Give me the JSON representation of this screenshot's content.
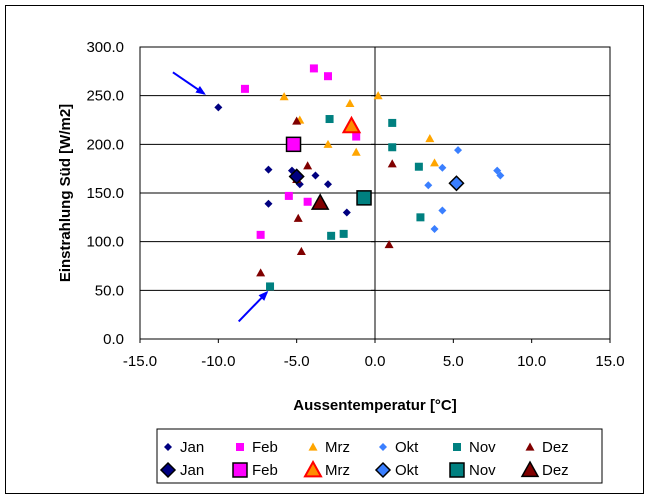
{
  "chart_data": {
    "type": "scatter",
    "title": "",
    "xlabel": "Aussentemperatur [°C]",
    "ylabel": "Einstrahlung Süd [W/m2]",
    "xlim": [
      -15,
      15
    ],
    "ylim": [
      0,
      300
    ],
    "xticks": [
      -15,
      -10,
      -5,
      0,
      5,
      10,
      15
    ],
    "yticks": [
      0,
      50,
      100,
      150,
      200,
      250,
      300
    ],
    "xtick_labels": [
      "-15.0",
      "-10.0",
      "-5.0",
      "0.0",
      "5.0",
      "10.0",
      "15.0"
    ],
    "ytick_labels": [
      "0.0",
      "50.0",
      "100.0",
      "150.0",
      "200.0",
      "250.0",
      "300.0"
    ],
    "grid": "horizontal",
    "legend_position": "bottom",
    "series": [
      {
        "name": "Jan",
        "marker": "diamond",
        "size": "small",
        "color": "#000080",
        "points": [
          [
            -10.0,
            238
          ],
          [
            -6.8,
            174
          ],
          [
            -6.8,
            139
          ],
          [
            -5.3,
            173
          ],
          [
            -5.0,
            164
          ],
          [
            -4.8,
            159
          ],
          [
            -3.8,
            168
          ],
          [
            -3.0,
            159
          ],
          [
            -1.8,
            130
          ]
        ]
      },
      {
        "name": "Feb",
        "marker": "square",
        "size": "small",
        "color": "#ff00ff",
        "points": [
          [
            -8.3,
            257
          ],
          [
            -3.9,
            278
          ],
          [
            -3.0,
            270
          ],
          [
            -1.2,
            208
          ],
          [
            -5.5,
            147
          ],
          [
            -4.3,
            141
          ],
          [
            -7.3,
            107
          ]
        ]
      },
      {
        "name": "Mrz",
        "marker": "triangle",
        "size": "small",
        "color": "#ffa500",
        "points": [
          [
            -5.8,
            249
          ],
          [
            0.2,
            250
          ],
          [
            -1.6,
            242
          ],
          [
            -4.8,
            225
          ],
          [
            -3.0,
            200
          ],
          [
            -1.2,
            192
          ],
          [
            3.5,
            206
          ],
          [
            3.8,
            181
          ]
        ]
      },
      {
        "name": "Okt",
        "marker": "diamond",
        "size": "small",
        "color": "#3a7fff",
        "points": [
          [
            5.3,
            194
          ],
          [
            4.3,
            176
          ],
          [
            3.4,
            158
          ],
          [
            4.3,
            132
          ],
          [
            3.8,
            113
          ],
          [
            7.8,
            173
          ],
          [
            8.0,
            168
          ]
        ]
      },
      {
        "name": "Nov",
        "marker": "square",
        "size": "small",
        "color": "#008080",
        "points": [
          [
            -2.9,
            226
          ],
          [
            1.1,
            222
          ],
          [
            1.1,
            197
          ],
          [
            2.8,
            177
          ],
          [
            2.9,
            125
          ],
          [
            -2.0,
            108
          ],
          [
            -2.8,
            106
          ],
          [
            -6.7,
            54
          ]
        ]
      },
      {
        "name": "Dez",
        "marker": "triangle",
        "size": "small",
        "color": "#800000",
        "points": [
          [
            -5.0,
            224
          ],
          [
            1.1,
            180
          ],
          [
            -4.3,
            178
          ],
          [
            -5.0,
            164
          ],
          [
            -4.9,
            124
          ],
          [
            -4.7,
            90
          ],
          [
            0.9,
            97
          ],
          [
            -7.3,
            68
          ]
        ]
      },
      {
        "name": "Jan",
        "marker": "diamond",
        "size": "large",
        "color": "#000080",
        "points": [
          [
            -5.0,
            167
          ]
        ]
      },
      {
        "name": "Feb",
        "marker": "square",
        "size": "large",
        "color": "#ff00ff",
        "points": [
          [
            -5.2,
            200
          ]
        ]
      },
      {
        "name": "Mrz",
        "marker": "triangle",
        "size": "large",
        "color": "#ff8c00",
        "points": [
          [
            -1.5,
            219
          ]
        ]
      },
      {
        "name": "Okt",
        "marker": "diamond",
        "size": "large",
        "color": "#3a7fff",
        "points": [
          [
            5.2,
            160
          ]
        ]
      },
      {
        "name": "Nov",
        "marker": "square",
        "size": "large",
        "color": "#008080",
        "points": [
          [
            -0.7,
            145
          ]
        ]
      },
      {
        "name": "Dez",
        "marker": "triangle",
        "size": "large",
        "color": "#800000",
        "points": [
          [
            -3.5,
            140
          ]
        ]
      }
    ],
    "annotations": [
      {
        "type": "arrow",
        "color": "#0000ff",
        "from": [
          -12.9,
          274
        ],
        "to": [
          -10.9,
          252
        ]
      },
      {
        "type": "arrow",
        "color": "#0000ff",
        "from": [
          -8.7,
          18
        ],
        "to": [
          -6.9,
          48
        ]
      }
    ]
  }
}
